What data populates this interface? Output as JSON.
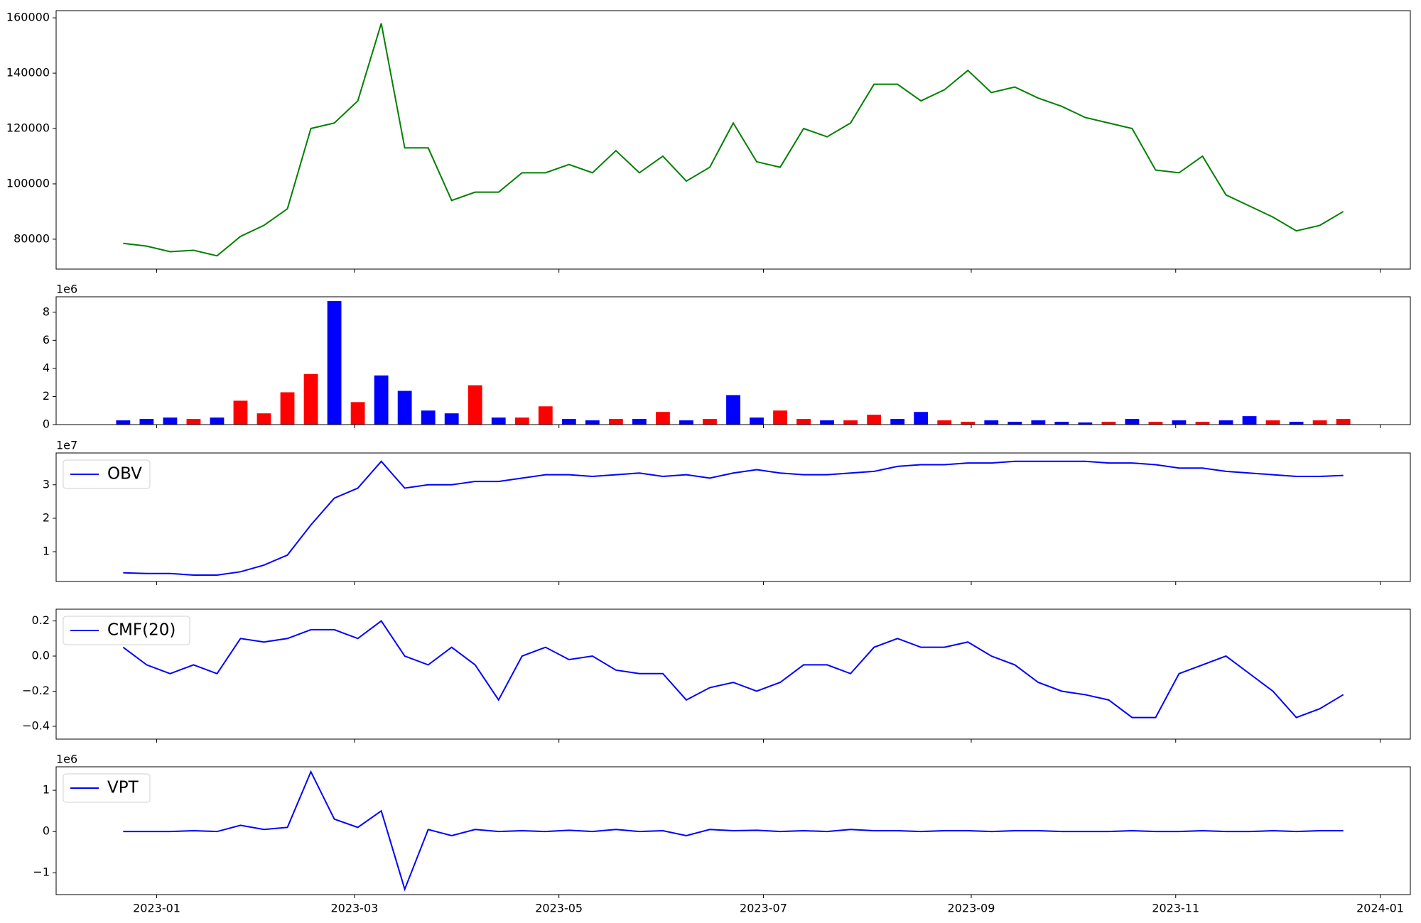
{
  "chart_data": [
    {
      "type": "line",
      "x": [
        "2022-12-22",
        "2022-12-29",
        "2023-01-05",
        "2023-01-12",
        "2023-01-19",
        "2023-01-26",
        "2023-02-02",
        "2023-02-09",
        "2023-02-16",
        "2023-02-23",
        "2023-03-02",
        "2023-03-09",
        "2023-03-16",
        "2023-03-23",
        "2023-03-30",
        "2023-04-06",
        "2023-04-13",
        "2023-04-20",
        "2023-04-27",
        "2023-05-04",
        "2023-05-11",
        "2023-05-18",
        "2023-05-25",
        "2023-06-01",
        "2023-06-08",
        "2023-06-15",
        "2023-06-22",
        "2023-06-29",
        "2023-07-06",
        "2023-07-13",
        "2023-07-20",
        "2023-07-27",
        "2023-08-03",
        "2023-08-10",
        "2023-08-17",
        "2023-08-24",
        "2023-08-31",
        "2023-09-07",
        "2023-09-14",
        "2023-09-21",
        "2023-09-28",
        "2023-10-05",
        "2023-10-12",
        "2023-10-19",
        "2023-10-26",
        "2023-11-02",
        "2023-11-09",
        "2023-11-16",
        "2023-11-23",
        "2023-11-30",
        "2023-12-07",
        "2023-12-14",
        "2023-12-21"
      ],
      "values": [
        78500,
        77500,
        75500,
        76000,
        74000,
        81000,
        85000,
        91000,
        120000,
        122000,
        130000,
        158000,
        113000,
        113000,
        94000,
        97000,
        97000,
        104000,
        104000,
        107000,
        104000,
        112000,
        104000,
        110000,
        101000,
        106000,
        122000,
        108000,
        106000,
        120000,
        117000,
        122000,
        136000,
        136000,
        130000,
        134000,
        141000,
        133000,
        135000,
        131000,
        128000,
        124000,
        122000,
        120000,
        105000,
        104000,
        110000,
        96000,
        92000,
        88000,
        83000,
        85000,
        90000
      ],
      "color": "#008000",
      "xlim": [
        "2022-12-02",
        "2024-01-10"
      ],
      "ylim": [
        69200,
        162600
      ],
      "yticks": [
        80000,
        100000,
        120000,
        140000,
        160000
      ]
    },
    {
      "type": "bar",
      "offset_text": "1e6",
      "x": [
        "2022-12-22",
        "2022-12-29",
        "2023-01-05",
        "2023-01-12",
        "2023-01-19",
        "2023-01-26",
        "2023-02-02",
        "2023-02-09",
        "2023-02-16",
        "2023-02-23",
        "2023-03-02",
        "2023-03-09",
        "2023-03-16",
        "2023-03-23",
        "2023-03-30",
        "2023-04-06",
        "2023-04-13",
        "2023-04-20",
        "2023-04-27",
        "2023-05-04",
        "2023-05-11",
        "2023-05-18",
        "2023-05-25",
        "2023-06-01",
        "2023-06-08",
        "2023-06-15",
        "2023-06-22",
        "2023-06-29",
        "2023-07-06",
        "2023-07-13",
        "2023-07-20",
        "2023-07-27",
        "2023-08-03",
        "2023-08-10",
        "2023-08-17",
        "2023-08-24",
        "2023-08-31",
        "2023-09-07",
        "2023-09-14",
        "2023-09-21",
        "2023-09-28",
        "2023-10-05",
        "2023-10-12",
        "2023-10-19",
        "2023-10-26",
        "2023-11-02",
        "2023-11-09",
        "2023-11-16",
        "2023-11-23",
        "2023-11-30",
        "2023-12-07",
        "2023-12-14",
        "2023-12-21"
      ],
      "values": [
        0.3,
        0.4,
        0.5,
        0.4,
        0.5,
        1.7,
        0.8,
        2.3,
        3.6,
        8.8,
        1.6,
        3.5,
        2.4,
        1.0,
        0.8,
        2.8,
        0.5,
        0.5,
        1.3,
        0.4,
        0.3,
        0.4,
        0.4,
        0.9,
        0.3,
        0.4,
        2.1,
        0.5,
        1.0,
        0.4,
        0.3,
        0.3,
        0.7,
        0.4,
        0.9,
        0.3,
        0.2,
        0.3,
        0.2,
        0.3,
        0.2,
        0.15,
        0.2,
        0.4,
        0.2,
        0.3,
        0.2,
        0.3,
        0.6,
        0.3,
        0.2,
        0.3,
        0.4
      ],
      "colors": [
        "blue",
        "blue",
        "blue",
        "red",
        "blue",
        "red",
        "red",
        "red",
        "red",
        "blue",
        "red",
        "blue",
        "blue",
        "blue",
        "blue",
        "red",
        "blue",
        "red",
        "red",
        "blue",
        "blue",
        "red",
        "blue",
        "red",
        "blue",
        "red",
        "blue",
        "blue",
        "red",
        "red",
        "blue",
        "red",
        "red",
        "blue",
        "blue",
        "red",
        "red",
        "blue",
        "blue",
        "blue",
        "blue",
        "blue",
        "red",
        "blue",
        "red",
        "blue",
        "red",
        "blue",
        "blue",
        "red",
        "blue",
        "red",
        "red"
      ],
      "xlim": [
        "2022-12-02",
        "2024-01-10"
      ],
      "ylim": [
        0,
        9.1
      ],
      "yticks": [
        0,
        2,
        4,
        6,
        8
      ]
    },
    {
      "type": "line",
      "offset_text": "1e7",
      "legend": "upper left",
      "x": [
        "2022-12-22",
        "2022-12-29",
        "2023-01-05",
        "2023-01-12",
        "2023-01-19",
        "2023-01-26",
        "2023-02-02",
        "2023-02-09",
        "2023-02-16",
        "2023-02-23",
        "2023-03-02",
        "2023-03-09",
        "2023-03-16",
        "2023-03-23",
        "2023-03-30",
        "2023-04-06",
        "2023-04-13",
        "2023-04-20",
        "2023-04-27",
        "2023-05-04",
        "2023-05-11",
        "2023-05-18",
        "2023-05-25",
        "2023-06-01",
        "2023-06-08",
        "2023-06-15",
        "2023-06-22",
        "2023-06-29",
        "2023-07-06",
        "2023-07-13",
        "2023-07-20",
        "2023-07-27",
        "2023-08-03",
        "2023-08-10",
        "2023-08-17",
        "2023-08-24",
        "2023-08-31",
        "2023-09-07",
        "2023-09-14",
        "2023-09-21",
        "2023-09-28",
        "2023-10-05",
        "2023-10-12",
        "2023-10-19",
        "2023-10-26",
        "2023-11-02",
        "2023-11-09",
        "2023-11-16",
        "2023-11-23",
        "2023-11-30",
        "2023-12-07",
        "2023-12-14",
        "2023-12-21"
      ],
      "series": [
        {
          "name": "OBV",
          "color": "#0000ff",
          "values": [
            0.37,
            0.35,
            0.35,
            0.3,
            0.3,
            0.4,
            0.6,
            0.9,
            1.8,
            2.6,
            2.9,
            3.7,
            2.9,
            3.0,
            3.0,
            3.1,
            3.1,
            3.2,
            3.3,
            3.3,
            3.25,
            3.3,
            3.35,
            3.25,
            3.3,
            3.2,
            3.35,
            3.45,
            3.35,
            3.3,
            3.3,
            3.35,
            3.4,
            3.55,
            3.6,
            3.6,
            3.65,
            3.65,
            3.7,
            3.7,
            3.7,
            3.7,
            3.65,
            3.65,
            3.6,
            3.5,
            3.5,
            3.4,
            3.35,
            3.3,
            3.25,
            3.25,
            3.28
          ]
        }
      ],
      "xlim": [
        "2022-12-02",
        "2024-01-10"
      ],
      "ylim": [
        0.11,
        3.95
      ],
      "yticks": [
        1,
        2,
        3
      ]
    },
    {
      "type": "line",
      "legend": "upper left",
      "x": [
        "2022-12-22",
        "2022-12-29",
        "2023-01-05",
        "2023-01-12",
        "2023-01-19",
        "2023-01-26",
        "2023-02-02",
        "2023-02-09",
        "2023-02-16",
        "2023-02-23",
        "2023-03-02",
        "2023-03-09",
        "2023-03-16",
        "2023-03-23",
        "2023-03-30",
        "2023-04-06",
        "2023-04-13",
        "2023-04-20",
        "2023-04-27",
        "2023-05-04",
        "2023-05-11",
        "2023-05-18",
        "2023-05-25",
        "2023-06-01",
        "2023-06-08",
        "2023-06-15",
        "2023-06-22",
        "2023-06-29",
        "2023-07-06",
        "2023-07-13",
        "2023-07-20",
        "2023-07-27",
        "2023-08-03",
        "2023-08-10",
        "2023-08-17",
        "2023-08-24",
        "2023-08-31",
        "2023-09-07",
        "2023-09-14",
        "2023-09-21",
        "2023-09-28",
        "2023-10-05",
        "2023-10-12",
        "2023-10-19",
        "2023-10-26",
        "2023-11-02",
        "2023-11-09",
        "2023-11-16",
        "2023-11-23",
        "2023-11-30",
        "2023-12-07",
        "2023-12-14",
        "2023-12-21"
      ],
      "series": [
        {
          "name": "CMF(20)",
          "color": "#0000ff",
          "values": [
            0.05,
            -0.05,
            -0.1,
            -0.05,
            -0.1,
            0.1,
            0.08,
            0.1,
            0.15,
            0.15,
            0.1,
            0.2,
            0.0,
            -0.05,
            0.05,
            -0.05,
            -0.25,
            0.0,
            0.05,
            -0.02,
            0.0,
            -0.08,
            -0.1,
            -0.1,
            -0.25,
            -0.18,
            -0.15,
            -0.2,
            -0.15,
            -0.05,
            -0.05,
            -0.1,
            0.05,
            0.1,
            0.05,
            0.05,
            0.08,
            0.0,
            -0.05,
            -0.15,
            -0.2,
            -0.22,
            -0.25,
            -0.35,
            -0.35,
            -0.1,
            -0.05,
            0.0,
            -0.1,
            -0.2,
            -0.35,
            -0.3,
            -0.22
          ]
        }
      ],
      "xlim": [
        "2022-12-02",
        "2024-01-10"
      ],
      "ylim": [
        -0.473,
        0.267
      ],
      "yticks": [
        {
          "value": -0.4,
          "label": "−0.4"
        },
        {
          "value": -0.2,
          "label": "−0.2"
        },
        {
          "value": 0,
          "label": "0.0"
        },
        0.2
      ]
    },
    {
      "type": "line",
      "offset_text": "1e6",
      "legend": "upper left",
      "x": [
        "2022-12-22",
        "2022-12-29",
        "2023-01-05",
        "2023-01-12",
        "2023-01-19",
        "2023-01-26",
        "2023-02-02",
        "2023-02-09",
        "2023-02-16",
        "2023-02-23",
        "2023-03-02",
        "2023-03-09",
        "2023-03-16",
        "2023-03-23",
        "2023-03-30",
        "2023-04-06",
        "2023-04-13",
        "2023-04-20",
        "2023-04-27",
        "2023-05-04",
        "2023-05-11",
        "2023-05-18",
        "2023-05-25",
        "2023-06-01",
        "2023-06-08",
        "2023-06-15",
        "2023-06-22",
        "2023-06-29",
        "2023-07-06",
        "2023-07-13",
        "2023-07-20",
        "2023-07-27",
        "2023-08-03",
        "2023-08-10",
        "2023-08-17",
        "2023-08-24",
        "2023-08-31",
        "2023-09-07",
        "2023-09-14",
        "2023-09-21",
        "2023-09-28",
        "2023-10-05",
        "2023-10-12",
        "2023-10-19",
        "2023-10-26",
        "2023-11-02",
        "2023-11-09",
        "2023-11-16",
        "2023-11-23",
        "2023-11-30",
        "2023-12-07",
        "2023-12-14",
        "2023-12-21"
      ],
      "series": [
        {
          "name": "VPT",
          "color": "#0000ff",
          "values": [
            0,
            0,
            0,
            0.02,
            0,
            0.15,
            0.05,
            0.1,
            1.45,
            0.3,
            0.1,
            0.5,
            -1.4,
            0.05,
            -0.1,
            0.05,
            0,
            0.02,
            0,
            0.03,
            0,
            0.05,
            0,
            0.02,
            -0.1,
            0.05,
            0.02,
            0.03,
            0,
            0.02,
            0,
            0.05,
            0.02,
            0.02,
            0,
            0.02,
            0.02,
            0,
            0.02,
            0.02,
            0,
            0,
            0,
            0.02,
            0,
            0,
            0.02,
            0,
            0,
            0.02,
            0,
            0.02,
            0.02
          ]
        }
      ],
      "xlim": [
        "2022-12-02",
        "2024-01-10"
      ],
      "ylim": [
        -1.53,
        1.57
      ],
      "yticks": [
        {
          "value": -1,
          "label": "−1"
        },
        0,
        1
      ],
      "xticks": [
        {
          "value": "2023-01-01",
          "label": "2023-01"
        },
        {
          "value": "2023-03-01",
          "label": "2023-03"
        },
        {
          "value": "2023-05-01",
          "label": "2023-05"
        },
        {
          "value": "2023-07-01",
          "label": "2023-07"
        },
        {
          "value": "2023-09-01",
          "label": "2023-09"
        },
        {
          "value": "2023-11-01",
          "label": "2023-11"
        },
        {
          "value": "2024-01-01",
          "label": "2024-01"
        }
      ]
    }
  ]
}
